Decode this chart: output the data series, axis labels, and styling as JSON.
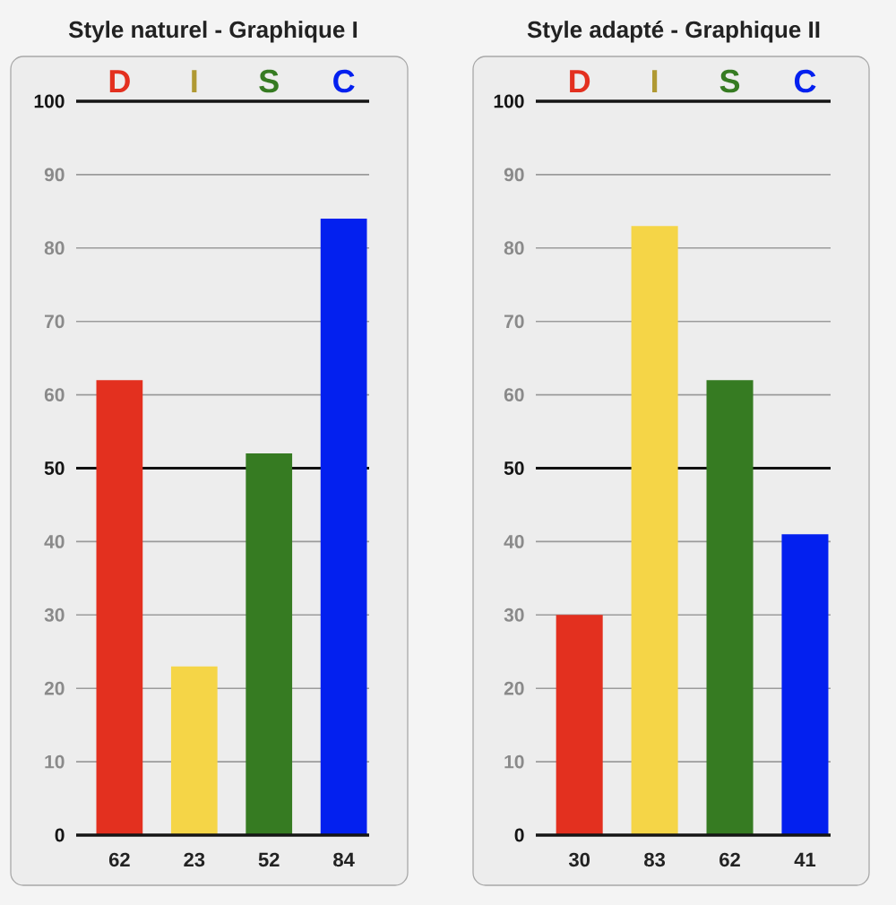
{
  "chart_data": [
    {
      "type": "bar",
      "title": "Style naturel - Graphique I",
      "categories": [
        "D",
        "I",
        "S",
        "C"
      ],
      "values": [
        62,
        23,
        52,
        84
      ],
      "colors": [
        "#e3301f",
        "#f5d547",
        "#367b22",
        "#0320ef"
      ],
      "ylim": [
        0,
        100
      ],
      "yticks": [
        0,
        10,
        20,
        30,
        40,
        50,
        60,
        70,
        80,
        90,
        100
      ],
      "grid": "y",
      "data_labels": true,
      "ref_lines": [
        {
          "axis": "y",
          "value": 50,
          "color": "#111111"
        }
      ]
    },
    {
      "type": "bar",
      "title": "Style adapté - Graphique II",
      "categories": [
        "D",
        "I",
        "S",
        "C"
      ],
      "values": [
        30,
        83,
        62,
        41
      ],
      "colors": [
        "#e3301f",
        "#f5d547",
        "#367b22",
        "#0320ef"
      ],
      "ylim": [
        0,
        100
      ],
      "yticks": [
        0,
        10,
        20,
        30,
        40,
        50,
        60,
        70,
        80,
        90,
        100
      ],
      "grid": "y",
      "data_labels": true,
      "ref_lines": [
        {
          "axis": "y",
          "value": 50,
          "color": "#111111"
        }
      ]
    }
  ]
}
